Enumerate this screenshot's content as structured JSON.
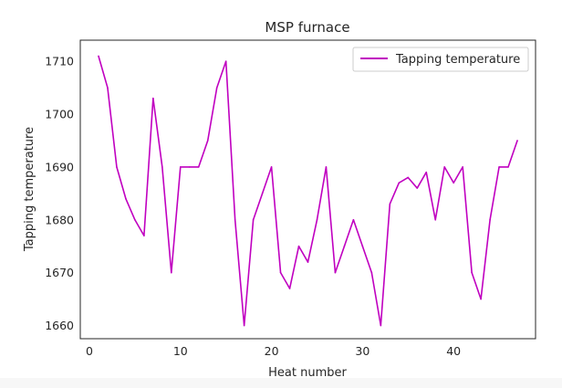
{
  "chart_data": {
    "type": "line",
    "title": "MSP furnace",
    "xlabel": "Heat number",
    "ylabel": "Tapping temperature",
    "xlim": [
      -1,
      49
    ],
    "ylim": [
      1657.5,
      1714
    ],
    "xticks": [
      0,
      10,
      20,
      30,
      40
    ],
    "yticks": [
      1660,
      1670,
      1680,
      1690,
      1700,
      1710
    ],
    "grid": false,
    "legend_position": "top-right",
    "series": [
      {
        "name": "Tapping temperature",
        "color": "#c000c0",
        "x": [
          1,
          2,
          3,
          4,
          5,
          6,
          7,
          8,
          9,
          10,
          11,
          12,
          13,
          14,
          15,
          16,
          17,
          18,
          19,
          20,
          21,
          22,
          23,
          24,
          25,
          26,
          27,
          28,
          29,
          30,
          31,
          32,
          33,
          34,
          35,
          36,
          37,
          38,
          39,
          40,
          41,
          42,
          43,
          44,
          45,
          46,
          47
        ],
        "values": [
          1711,
          1705,
          1690,
          1684,
          1680,
          1677,
          1703,
          1690,
          1670,
          1690,
          1690,
          1690,
          1695,
          1705,
          1710,
          1680,
          1660,
          1680,
          1685,
          1690,
          1670,
          1667,
          1675,
          1672,
          1680,
          1690,
          1670,
          1675,
          1680,
          1675,
          1670,
          1660,
          1683,
          1687,
          1688,
          1686,
          1689,
          1680,
          1690,
          1687,
          1690,
          1670,
          1665,
          1680,
          1690,
          1690,
          1695
        ]
      }
    ]
  }
}
